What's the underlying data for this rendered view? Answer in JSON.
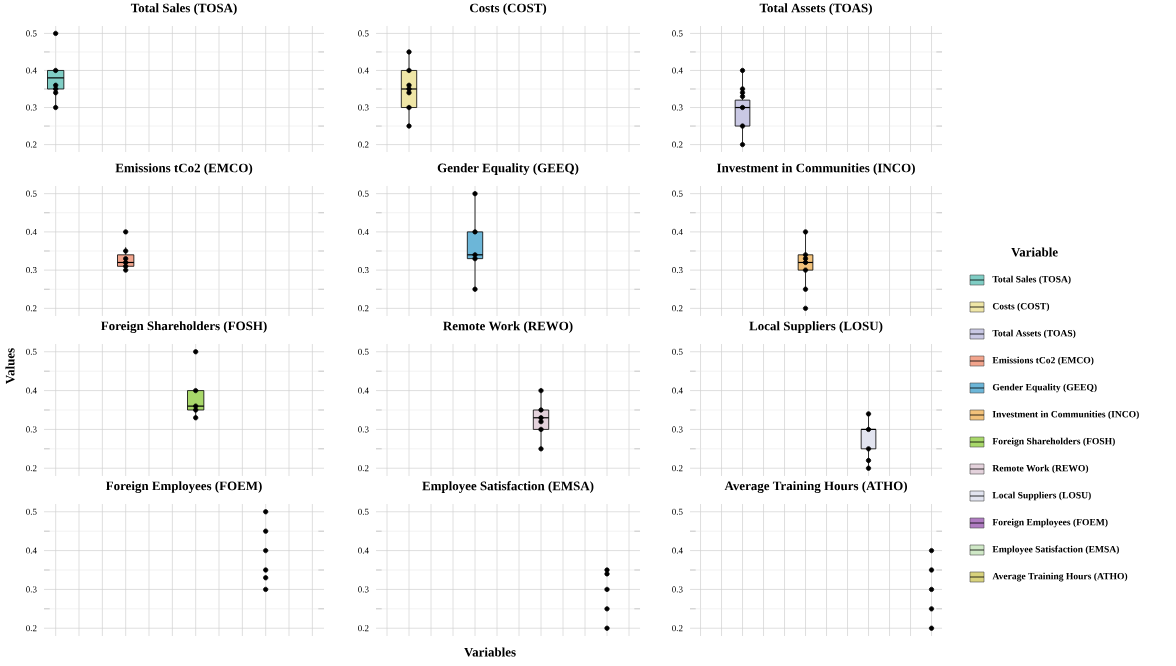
{
  "chart_data": [
    {
      "type": "box",
      "title": "Total Sales (TOSA)",
      "categories": [
        null,
        null,
        null,
        null,
        null,
        null,
        null,
        null,
        null,
        null,
        null,
        null
      ],
      "ylim": [
        0.18,
        0.52
      ],
      "yticks": [
        0.2,
        0.3,
        0.4,
        0.5
      ],
      "tick_labels": "y",
      "grid": true,
      "marker": "circle",
      "legend": "right",
      "legend_title": "Variable",
      "series": [
        {
          "name": "Total Sales (TOSA)",
          "color": "#7fcdc4",
          "boxes": [
            {
              "low": 0.3,
              "q1": 0.35,
              "median": 0.38,
              "q3": 0.4,
              "high": 0.4
            },
            null,
            null,
            null,
            null,
            null,
            null,
            null,
            null,
            null,
            null,
            null
          ]
        },
        {
          "type": "scatter",
          "color": "#000000",
          "values": [
            0.5,
            null,
            null,
            null,
            null,
            null,
            null,
            null,
            null,
            null,
            null,
            null
          ]
        },
        {
          "type": "scatter",
          "color": "#000000",
          "values": [
            0.4,
            null,
            null,
            null,
            null,
            null,
            null,
            null,
            null,
            null,
            null,
            null
          ]
        },
        {
          "type": "scatter",
          "color": "#000000",
          "values": [
            0.36,
            null,
            null,
            null,
            null,
            null,
            null,
            null,
            null,
            null,
            null,
            null
          ]
        },
        {
          "type": "scatter",
          "color": "#000000",
          "values": [
            0.35,
            null,
            null,
            null,
            null,
            null,
            null,
            null,
            null,
            null,
            null,
            null
          ]
        },
        {
          "type": "scatter",
          "color": "#000000",
          "values": [
            0.34,
            null,
            null,
            null,
            null,
            null,
            null,
            null,
            null,
            null,
            null,
            null
          ]
        },
        {
          "type": "scatter",
          "color": "#000000",
          "values": [
            0.3,
            null,
            null,
            null,
            null,
            null,
            null,
            null,
            null,
            null,
            null,
            null
          ]
        }
      ]
    },
    {
      "type": "box",
      "title": "Costs (COST)",
      "categories": [
        null,
        null,
        null,
        null,
        null,
        null,
        null,
        null,
        null,
        null,
        null,
        null
      ],
      "ylim": [
        0.18,
        0.52
      ],
      "yticks": [
        0.2,
        0.3,
        0.4,
        0.5
      ],
      "tick_labels": "y",
      "grid": true,
      "marker": "circle",
      "series": [
        {
          "name": "Costs (COST)",
          "color": "#efe6a6",
          "boxes": [
            null,
            {
              "low": 0.25,
              "q1": 0.3,
              "median": 0.35,
              "q3": 0.4,
              "high": 0.45
            },
            null,
            null,
            null,
            null,
            null,
            null,
            null,
            null,
            null,
            null
          ]
        },
        {
          "type": "scatter",
          "color": "#000000",
          "values": [
            null,
            0.45,
            null,
            null,
            null,
            null,
            null,
            null,
            null,
            null,
            null,
            null
          ]
        },
        {
          "type": "scatter",
          "color": "#000000",
          "values": [
            null,
            0.4,
            null,
            null,
            null,
            null,
            null,
            null,
            null,
            null,
            null,
            null
          ]
        },
        {
          "type": "scatter",
          "color": "#000000",
          "values": [
            null,
            0.36,
            null,
            null,
            null,
            null,
            null,
            null,
            null,
            null,
            null,
            null
          ]
        },
        {
          "type": "scatter",
          "color": "#000000",
          "values": [
            null,
            0.35,
            null,
            null,
            null,
            null,
            null,
            null,
            null,
            null,
            null,
            null
          ]
        },
        {
          "type": "scatter",
          "color": "#000000",
          "values": [
            null,
            0.34,
            null,
            null,
            null,
            null,
            null,
            null,
            null,
            null,
            null,
            null
          ]
        },
        {
          "type": "scatter",
          "color": "#000000",
          "values": [
            null,
            0.3,
            null,
            null,
            null,
            null,
            null,
            null,
            null,
            null,
            null,
            null
          ]
        },
        {
          "type": "scatter",
          "color": "#000000",
          "values": [
            null,
            0.25,
            null,
            null,
            null,
            null,
            null,
            null,
            null,
            null,
            null,
            null
          ]
        }
      ]
    },
    {
      "type": "box",
      "title": "Total Assets (TOAS)",
      "categories": [
        null,
        null,
        null,
        null,
        null,
        null,
        null,
        null,
        null,
        null,
        null,
        null
      ],
      "ylim": [
        0.18,
        0.52
      ],
      "yticks": [
        0.2,
        0.3,
        0.4,
        0.5
      ],
      "tick_labels": "y",
      "grid": true,
      "marker": "circle",
      "series": [
        {
          "name": "Total Assets (TOAS)",
          "color": "#c9c8e4",
          "boxes": [
            null,
            null,
            {
              "low": 0.2,
              "q1": 0.25,
              "median": 0.3,
              "q3": 0.32,
              "high": 0.4
            },
            null,
            null,
            null,
            null,
            null,
            null,
            null,
            null,
            null
          ]
        },
        {
          "type": "scatter",
          "color": "#000000",
          "values": [
            null,
            null,
            0.4,
            null,
            null,
            null,
            null,
            null,
            null,
            null,
            null,
            null
          ]
        },
        {
          "type": "scatter",
          "color": "#000000",
          "values": [
            null,
            null,
            0.35,
            null,
            null,
            null,
            null,
            null,
            null,
            null,
            null,
            null
          ]
        },
        {
          "type": "scatter",
          "color": "#000000",
          "values": [
            null,
            null,
            0.34,
            null,
            null,
            null,
            null,
            null,
            null,
            null,
            null,
            null
          ]
        },
        {
          "type": "scatter",
          "color": "#000000",
          "values": [
            null,
            null,
            0.33,
            null,
            null,
            null,
            null,
            null,
            null,
            null,
            null,
            null
          ]
        },
        {
          "type": "scatter",
          "color": "#000000",
          "values": [
            null,
            null,
            0.3,
            null,
            null,
            null,
            null,
            null,
            null,
            null,
            null,
            null
          ]
        },
        {
          "type": "scatter",
          "color": "#000000",
          "values": [
            null,
            null,
            0.25,
            null,
            null,
            null,
            null,
            null,
            null,
            null,
            null,
            null
          ]
        },
        {
          "type": "scatter",
          "color": "#000000",
          "values": [
            null,
            null,
            0.2,
            null,
            null,
            null,
            null,
            null,
            null,
            null,
            null,
            null
          ]
        }
      ]
    },
    {
      "type": "box",
      "title": "Emissions tCo2 (EMCO)",
      "categories": [
        null,
        null,
        null,
        null,
        null,
        null,
        null,
        null,
        null,
        null,
        null,
        null
      ],
      "ylim": [
        0.18,
        0.52
      ],
      "yticks": [
        0.2,
        0.3,
        0.4,
        0.5
      ],
      "tick_labels": "y",
      "grid": true,
      "marker": "circle",
      "series": [
        {
          "name": "Emissions tCo2 (EMCO)",
          "color": "#f2a48c",
          "boxes": [
            null,
            null,
            null,
            {
              "low": 0.3,
              "q1": 0.31,
              "median": 0.32,
              "q3": 0.34,
              "high": 0.36
            },
            null,
            null,
            null,
            null,
            null,
            null,
            null,
            null
          ]
        },
        {
          "type": "scatter",
          "color": "#000000",
          "values": [
            null,
            null,
            null,
            0.4,
            null,
            null,
            null,
            null,
            null,
            null,
            null,
            null
          ]
        },
        {
          "type": "scatter",
          "color": "#000000",
          "values": [
            null,
            null,
            null,
            0.35,
            null,
            null,
            null,
            null,
            null,
            null,
            null,
            null
          ]
        },
        {
          "type": "scatter",
          "color": "#000000",
          "values": [
            null,
            null,
            null,
            0.33,
            null,
            null,
            null,
            null,
            null,
            null,
            null,
            null
          ]
        },
        {
          "type": "scatter",
          "color": "#000000",
          "values": [
            null,
            null,
            null,
            0.32,
            null,
            null,
            null,
            null,
            null,
            null,
            null,
            null
          ]
        },
        {
          "type": "scatter",
          "color": "#000000",
          "values": [
            null,
            null,
            null,
            0.31,
            null,
            null,
            null,
            null,
            null,
            null,
            null,
            null
          ]
        },
        {
          "type": "scatter",
          "color": "#000000",
          "values": [
            null,
            null,
            null,
            0.3,
            null,
            null,
            null,
            null,
            null,
            null,
            null,
            null
          ]
        }
      ]
    },
    {
      "type": "box",
      "title": "Gender Equality (GEEQ)",
      "categories": [
        null,
        null,
        null,
        null,
        null,
        null,
        null,
        null,
        null,
        null,
        null,
        null
      ],
      "ylim": [
        0.18,
        0.52
      ],
      "yticks": [
        0.2,
        0.3,
        0.4,
        0.5
      ],
      "tick_labels": "y",
      "grid": true,
      "marker": "circle",
      "series": [
        {
          "name": "Gender Equality (GEEQ)",
          "color": "#6cb6d8",
          "boxes": [
            null,
            null,
            null,
            null,
            {
              "low": 0.25,
              "q1": 0.33,
              "median": 0.34,
              "q3": 0.4,
              "high": 0.5
            },
            null,
            null,
            null,
            null,
            null,
            null,
            null
          ]
        },
        {
          "type": "scatter",
          "color": "#000000",
          "values": [
            null,
            null,
            null,
            null,
            0.5,
            null,
            null,
            null,
            null,
            null,
            null,
            null
          ]
        },
        {
          "type": "scatter",
          "color": "#000000",
          "values": [
            null,
            null,
            null,
            null,
            0.4,
            null,
            null,
            null,
            null,
            null,
            null,
            null
          ]
        },
        {
          "type": "scatter",
          "color": "#000000",
          "values": [
            null,
            null,
            null,
            null,
            0.34,
            null,
            null,
            null,
            null,
            null,
            null,
            null
          ]
        },
        {
          "type": "scatter",
          "color": "#000000",
          "values": [
            null,
            null,
            null,
            null,
            0.33,
            null,
            null,
            null,
            null,
            null,
            null,
            null
          ]
        },
        {
          "type": "scatter",
          "color": "#000000",
          "values": [
            null,
            null,
            null,
            null,
            0.25,
            null,
            null,
            null,
            null,
            null,
            null,
            null
          ]
        }
      ]
    },
    {
      "type": "box",
      "title": "Investment in Communities (INCO)",
      "categories": [
        null,
        null,
        null,
        null,
        null,
        null,
        null,
        null,
        null,
        null,
        null,
        null
      ],
      "ylim": [
        0.18,
        0.52
      ],
      "yticks": [
        0.2,
        0.3,
        0.4,
        0.5
      ],
      "tick_labels": "y",
      "grid": true,
      "marker": "circle",
      "series": [
        {
          "name": "Investment in Communities (INCO)",
          "color": "#f3c27a",
          "boxes": [
            null,
            null,
            null,
            null,
            null,
            {
              "low": 0.25,
              "q1": 0.3,
              "median": 0.32,
              "q3": 0.34,
              "high": 0.4
            },
            null,
            null,
            null,
            null,
            null,
            null
          ]
        },
        {
          "type": "scatter",
          "color": "#000000",
          "values": [
            null,
            null,
            null,
            null,
            null,
            0.4,
            null,
            null,
            null,
            null,
            null,
            null
          ]
        },
        {
          "type": "scatter",
          "color": "#000000",
          "values": [
            null,
            null,
            null,
            null,
            null,
            0.34,
            null,
            null,
            null,
            null,
            null,
            null
          ]
        },
        {
          "type": "scatter",
          "color": "#000000",
          "values": [
            null,
            null,
            null,
            null,
            null,
            0.33,
            null,
            null,
            null,
            null,
            null,
            null
          ]
        },
        {
          "type": "scatter",
          "color": "#000000",
          "values": [
            null,
            null,
            null,
            null,
            null,
            0.32,
            null,
            null,
            null,
            null,
            null,
            null
          ]
        },
        {
          "type": "scatter",
          "color": "#000000",
          "values": [
            null,
            null,
            null,
            null,
            null,
            0.3,
            null,
            null,
            null,
            null,
            null,
            null
          ]
        },
        {
          "type": "scatter",
          "color": "#000000",
          "values": [
            null,
            null,
            null,
            null,
            null,
            0.25,
            null,
            null,
            null,
            null,
            null,
            null
          ]
        },
        {
          "type": "scatter",
          "color": "#000000",
          "values": [
            null,
            null,
            null,
            null,
            null,
            0.2,
            null,
            null,
            null,
            null,
            null,
            null
          ]
        }
      ]
    },
    {
      "type": "box",
      "title": "Foreign Shareholders (FOSH)",
      "categories": [
        null,
        null,
        null,
        null,
        null,
        null,
        null,
        null,
        null,
        null,
        null,
        null
      ],
      "ylim": [
        0.18,
        0.52
      ],
      "yticks": [
        0.2,
        0.3,
        0.4,
        0.5
      ],
      "tick_labels": "y",
      "grid": true,
      "marker": "circle",
      "ylabel": "Values",
      "series": [
        {
          "name": "Foreign Shareholders (FOSH)",
          "color": "#a8d86a",
          "boxes": [
            null,
            null,
            null,
            null,
            null,
            null,
            {
              "low": 0.33,
              "q1": 0.35,
              "median": 0.36,
              "q3": 0.4,
              "high": 0.4
            },
            null,
            null,
            null,
            null,
            null
          ]
        },
        {
          "type": "scatter",
          "color": "#000000",
          "values": [
            null,
            null,
            null,
            null,
            null,
            null,
            0.5,
            null,
            null,
            null,
            null,
            null
          ]
        },
        {
          "type": "scatter",
          "color": "#000000",
          "values": [
            null,
            null,
            null,
            null,
            null,
            null,
            0.4,
            null,
            null,
            null,
            null,
            null
          ]
        },
        {
          "type": "scatter",
          "color": "#000000",
          "values": [
            null,
            null,
            null,
            null,
            null,
            null,
            0.36,
            null,
            null,
            null,
            null,
            null
          ]
        },
        {
          "type": "scatter",
          "color": "#000000",
          "values": [
            null,
            null,
            null,
            null,
            null,
            null,
            0.35,
            null,
            null,
            null,
            null,
            null
          ]
        },
        {
          "type": "scatter",
          "color": "#000000",
          "values": [
            null,
            null,
            null,
            null,
            null,
            null,
            0.33,
            null,
            null,
            null,
            null,
            null
          ]
        }
      ]
    },
    {
      "type": "box",
      "title": "Remote Work (REWO)",
      "categories": [
        null,
        null,
        null,
        null,
        null,
        null,
        null,
        null,
        null,
        null,
        null,
        null
      ],
      "ylim": [
        0.18,
        0.52
      ],
      "yticks": [
        0.2,
        0.3,
        0.4,
        0.5
      ],
      "tick_labels": "y",
      "grid": true,
      "marker": "circle",
      "series": [
        {
          "name": "Remote Work (REWO)",
          "color": "#e4d2dc",
          "boxes": [
            null,
            null,
            null,
            null,
            null,
            null,
            null,
            {
              "low": 0.25,
              "q1": 0.3,
              "median": 0.33,
              "q3": 0.35,
              "high": 0.4
            },
            null,
            null,
            null,
            null
          ]
        },
        {
          "type": "scatter",
          "color": "#000000",
          "values": [
            null,
            null,
            null,
            null,
            null,
            null,
            null,
            0.4,
            null,
            null,
            null,
            null
          ]
        },
        {
          "type": "scatter",
          "color": "#000000",
          "values": [
            null,
            null,
            null,
            null,
            null,
            null,
            null,
            0.35,
            null,
            null,
            null,
            null
          ]
        },
        {
          "type": "scatter",
          "color": "#000000",
          "values": [
            null,
            null,
            null,
            null,
            null,
            null,
            null,
            0.33,
            null,
            null,
            null,
            null
          ]
        },
        {
          "type": "scatter",
          "color": "#000000",
          "values": [
            null,
            null,
            null,
            null,
            null,
            null,
            null,
            0.32,
            null,
            null,
            null,
            null
          ]
        },
        {
          "type": "scatter",
          "color": "#000000",
          "values": [
            null,
            null,
            null,
            null,
            null,
            null,
            null,
            0.3,
            null,
            null,
            null,
            null
          ]
        },
        {
          "type": "scatter",
          "color": "#000000",
          "values": [
            null,
            null,
            null,
            null,
            null,
            null,
            null,
            0.25,
            null,
            null,
            null,
            null
          ]
        }
      ]
    },
    {
      "type": "box",
      "title": "Local Suppliers (LOSU)",
      "categories": [
        null,
        null,
        null,
        null,
        null,
        null,
        null,
        null,
        null,
        null,
        null,
        null
      ],
      "ylim": [
        0.18,
        0.52
      ],
      "yticks": [
        0.2,
        0.3,
        0.4,
        0.5
      ],
      "tick_labels": "y",
      "grid": true,
      "marker": "circle",
      "series": [
        {
          "name": "Local Suppliers (LOSU)",
          "color": "#e2e4f0",
          "boxes": [
            null,
            null,
            null,
            null,
            null,
            null,
            null,
            null,
            {
              "low": 0.2,
              "q1": 0.25,
              "median": 0.3,
              "q3": 0.3,
              "high": 0.34
            },
            null,
            null,
            null
          ]
        },
        {
          "type": "scatter",
          "color": "#000000",
          "values": [
            null,
            null,
            null,
            null,
            null,
            null,
            null,
            null,
            0.34,
            null,
            null,
            null
          ]
        },
        {
          "type": "scatter",
          "color": "#000000",
          "values": [
            null,
            null,
            null,
            null,
            null,
            null,
            null,
            null,
            0.3,
            null,
            null,
            null
          ]
        },
        {
          "type": "scatter",
          "color": "#000000",
          "values": [
            null,
            null,
            null,
            null,
            null,
            null,
            null,
            null,
            0.25,
            null,
            null,
            null
          ]
        },
        {
          "type": "scatter",
          "color": "#000000",
          "values": [
            null,
            null,
            null,
            null,
            null,
            null,
            null,
            null,
            0.22,
            null,
            null,
            null
          ]
        },
        {
          "type": "scatter",
          "color": "#000000",
          "values": [
            null,
            null,
            null,
            null,
            null,
            null,
            null,
            null,
            0.2,
            null,
            null,
            null
          ]
        }
      ]
    },
    {
      "type": "box",
      "title": "Foreign Employees (FOEM)",
      "categories": [
        null,
        null,
        null,
        null,
        null,
        null,
        null,
        null,
        null,
        null,
        null,
        null
      ],
      "ylim": [
        0.18,
        0.52
      ],
      "yticks": [
        0.2,
        0.3,
        0.4,
        0.5
      ],
      "tick_labels": "y",
      "grid": true,
      "marker": "circle",
      "series": [
        {
          "name": "Foreign Employees (FOEM)",
          "color": "#b07cc2",
          "boxes": [
            null,
            null,
            null,
            null,
            null,
            null,
            null,
            null,
            null,
            null,
            null,
            null
          ]
        },
        {
          "type": "scatter",
          "color": "#000000",
          "values": [
            null,
            null,
            null,
            null,
            null,
            null,
            null,
            null,
            null,
            0.5,
            null,
            null
          ]
        },
        {
          "type": "scatter",
          "color": "#000000",
          "values": [
            null,
            null,
            null,
            null,
            null,
            null,
            null,
            null,
            null,
            0.45,
            null,
            null
          ]
        },
        {
          "type": "scatter",
          "color": "#000000",
          "values": [
            null,
            null,
            null,
            null,
            null,
            null,
            null,
            null,
            null,
            0.4,
            null,
            null
          ]
        },
        {
          "type": "scatter",
          "color": "#000000",
          "values": [
            null,
            null,
            null,
            null,
            null,
            null,
            null,
            null,
            null,
            0.35,
            null,
            null
          ]
        },
        {
          "type": "scatter",
          "color": "#000000",
          "values": [
            null,
            null,
            null,
            null,
            null,
            null,
            null,
            null,
            null,
            0.33,
            null,
            null
          ]
        },
        {
          "type": "scatter",
          "color": "#000000",
          "values": [
            null,
            null,
            null,
            null,
            null,
            null,
            null,
            null,
            null,
            0.3,
            null,
            null
          ]
        }
      ]
    },
    {
      "type": "box",
      "title": "Employee Satisfaction (EMSA)",
      "categories": [
        null,
        null,
        null,
        null,
        null,
        null,
        null,
        null,
        null,
        null,
        null,
        null
      ],
      "ylim": [
        0.18,
        0.52
      ],
      "yticks": [
        0.2,
        0.3,
        0.4,
        0.5
      ],
      "tick_labels": "y",
      "grid": true,
      "marker": "circle",
      "xlabel": "Variables",
      "series": [
        {
          "name": "Employee Satisfaction (EMSA)",
          "color": "#cfe8c6",
          "boxes": [
            null,
            null,
            null,
            null,
            null,
            null,
            null,
            null,
            null,
            null,
            null,
            null
          ]
        },
        {
          "type": "scatter",
          "color": "#000000",
          "values": [
            null,
            null,
            null,
            null,
            null,
            null,
            null,
            null,
            null,
            null,
            0.35,
            null
          ]
        },
        {
          "type": "scatter",
          "color": "#000000",
          "values": [
            null,
            null,
            null,
            null,
            null,
            null,
            null,
            null,
            null,
            null,
            0.34,
            null
          ]
        },
        {
          "type": "scatter",
          "color": "#000000",
          "values": [
            null,
            null,
            null,
            null,
            null,
            null,
            null,
            null,
            null,
            null,
            0.3,
            null
          ]
        },
        {
          "type": "scatter",
          "color": "#000000",
          "values": [
            null,
            null,
            null,
            null,
            null,
            null,
            null,
            null,
            null,
            null,
            0.25,
            null
          ]
        },
        {
          "type": "scatter",
          "color": "#000000",
          "values": [
            null,
            null,
            null,
            null,
            null,
            null,
            null,
            null,
            null,
            null,
            0.2,
            null
          ]
        }
      ]
    },
    {
      "type": "box",
      "title": "Average Training Hours (ATHO)",
      "categories": [
        null,
        null,
        null,
        null,
        null,
        null,
        null,
        null,
        null,
        null,
        null,
        null
      ],
      "ylim": [
        0.18,
        0.52
      ],
      "yticks": [
        0.2,
        0.3,
        0.4,
        0.5
      ],
      "tick_labels": "y",
      "grid": true,
      "marker": "circle",
      "series": [
        {
          "name": "Average Training Hours (ATHO)",
          "color": "#d8d27c",
          "boxes": [
            null,
            null,
            null,
            null,
            null,
            null,
            null,
            null,
            null,
            null,
            null,
            null
          ]
        },
        {
          "type": "scatter",
          "color": "#000000",
          "values": [
            null,
            null,
            null,
            null,
            null,
            null,
            null,
            null,
            null,
            null,
            null,
            0.4
          ]
        },
        {
          "type": "scatter",
          "color": "#000000",
          "values": [
            null,
            null,
            null,
            null,
            null,
            null,
            null,
            null,
            null,
            null,
            null,
            0.35
          ]
        },
        {
          "type": "scatter",
          "color": "#000000",
          "values": [
            null,
            null,
            null,
            null,
            null,
            null,
            null,
            null,
            null,
            null,
            null,
            0.3
          ]
        },
        {
          "type": "scatter",
          "color": "#000000",
          "values": [
            null,
            null,
            null,
            null,
            null,
            null,
            null,
            null,
            null,
            null,
            null,
            0.25
          ]
        },
        {
          "type": "scatter",
          "color": "#000000",
          "values": [
            null,
            null,
            null,
            null,
            null,
            null,
            null,
            null,
            null,
            null,
            null,
            0.2
          ]
        }
      ]
    }
  ]
}
